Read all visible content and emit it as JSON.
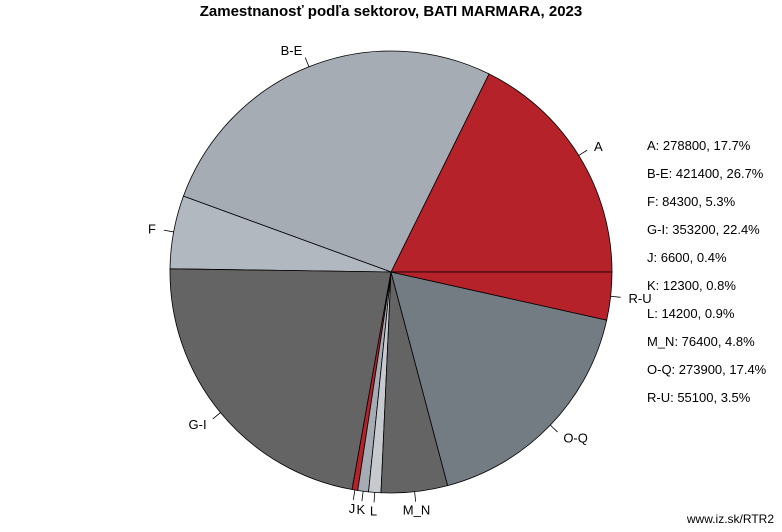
{
  "chart_data": {
    "type": "pie",
    "title": "Zamestnanosť podľa sektorov, BATI MARMARA, 2023",
    "start_angle_deg": 0,
    "direction": "counterclockwise",
    "slices": [
      {
        "label": "A",
        "value": 278800,
        "percent": "17.7%",
        "color": "#b5222a"
      },
      {
        "label": "B-E",
        "value": 421400,
        "percent": "26.7%",
        "color": "#a5acb4"
      },
      {
        "label": "F",
        "value": 84300,
        "percent": "5.3%",
        "color": "#b2b8bf"
      },
      {
        "label": "G-I",
        "value": 353200,
        "percent": "22.4%",
        "color": "#646464"
      },
      {
        "label": "J",
        "value": 6600,
        "percent": "0.4%",
        "color": "#b5222a"
      },
      {
        "label": "K",
        "value": 12300,
        "percent": "0.8%",
        "color": "#a5acb4"
      },
      {
        "label": "L",
        "value": 14200,
        "percent": "0.9%",
        "color": "#c6cacf"
      },
      {
        "label": "M_N",
        "value": 76400,
        "percent": "4.8%",
        "color": "#646464"
      },
      {
        "label": "O-Q",
        "value": 273900,
        "percent": "17.4%",
        "color": "#737b83"
      },
      {
        "label": "R-U",
        "value": 55100,
        "percent": "3.5%",
        "color": "#b5222a"
      }
    ],
    "legend": [
      "A: 278800, 17.7%",
      "B-E: 421400, 26.7%",
      "F: 84300, 5.3%",
      "G-I: 353200, 22.4%",
      "J: 6600, 0.4%",
      "K: 12300, 0.8%",
      "L: 14200, 0.9%",
      "M_N: 76400, 4.8%",
      "O-Q: 273900, 17.4%",
      "R-U: 55100, 3.5%"
    ],
    "legend_position": "right"
  },
  "source": "www.iz.sk/RTR2"
}
